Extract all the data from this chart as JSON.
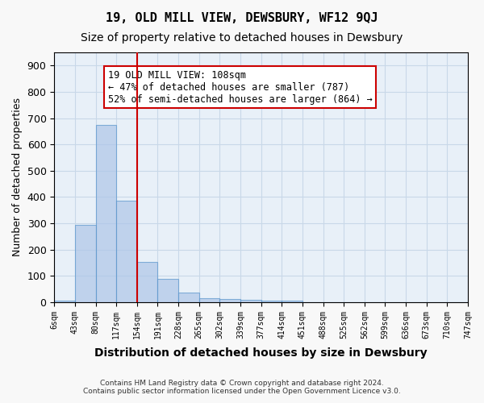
{
  "title": "19, OLD MILL VIEW, DEWSBURY, WF12 9QJ",
  "subtitle": "Size of property relative to detached houses in Dewsbury",
  "xlabel": "Distribution of detached houses by size in Dewsbury",
  "ylabel": "Number of detached properties",
  "bin_labels": [
    "6sqm",
    "43sqm",
    "80sqm",
    "117sqm",
    "154sqm",
    "191sqm",
    "228sqm",
    "265sqm",
    "302sqm",
    "339sqm",
    "377sqm",
    "414sqm",
    "451sqm",
    "488sqm",
    "525sqm",
    "562sqm",
    "599sqm",
    "636sqm",
    "673sqm",
    "710sqm",
    "747sqm"
  ],
  "bar_values": [
    6,
    293,
    675,
    385,
    153,
    88,
    37,
    15,
    12,
    8,
    6,
    5,
    0,
    0,
    0,
    0,
    0,
    0,
    0,
    0
  ],
  "bar_color": "#aec6e8",
  "bar_edge_color": "#5a96cc",
  "bar_alpha": 0.7,
  "grid_color": "#c8d8e8",
  "bg_color": "#e8f0f8",
  "red_line_x": 3,
  "red_line_color": "#cc0000",
  "annotation_text": "19 OLD MILL VIEW: 108sqm\n← 47% of detached houses are smaller (787)\n52% of semi-detached houses are larger (864) →",
  "annotation_color": "#cc0000",
  "ylim": [
    0,
    950
  ],
  "yticks": [
    0,
    100,
    200,
    300,
    400,
    500,
    600,
    700,
    800,
    900
  ],
  "footer_line1": "Contains HM Land Registry data © Crown copyright and database right 2024.",
  "footer_line2": "Contains public sector information licensed under the Open Government Licence v3.0."
}
